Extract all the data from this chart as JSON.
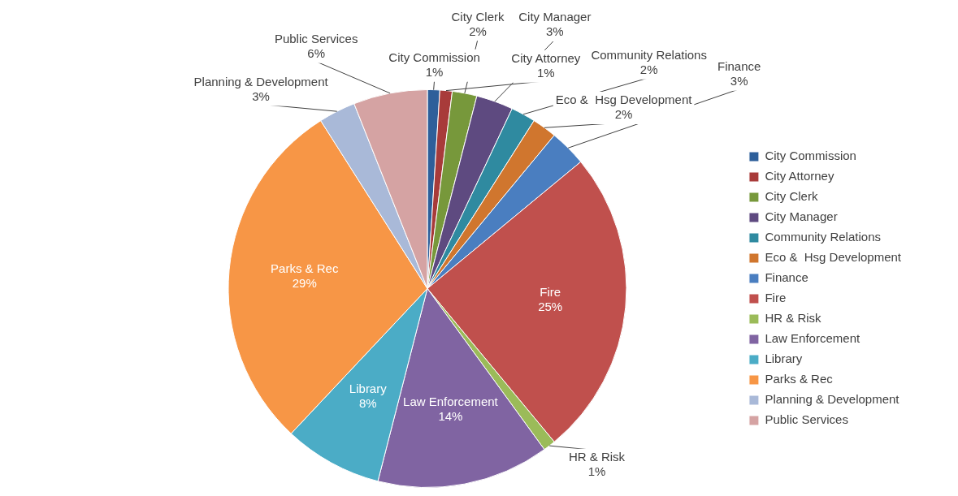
{
  "chart_data": {
    "type": "pie",
    "categories": [
      "City Commission",
      "City Attorney",
      "City Clerk",
      "City Manager",
      "Community Relations",
      "Eco &  Hsg Development",
      "Finance",
      "Fire",
      "HR & Risk",
      "Law Enforcement",
      "Library",
      "Parks & Rec",
      "Planning & Development",
      "Public Services"
    ],
    "values": [
      1,
      1,
      2,
      3,
      2,
      2,
      3,
      25,
      1,
      14,
      8,
      29,
      3,
      6
    ],
    "value_labels": [
      "1%",
      "1%",
      "2%",
      "3%",
      "2%",
      "2%",
      "3%",
      "25%",
      "1%",
      "14%",
      "8%",
      "29%",
      "3%",
      "6%"
    ],
    "colors": [
      "#2e5f9a",
      "#a83b3a",
      "#77983b",
      "#5e4a80",
      "#2f8aa0",
      "#d0762e",
      "#4a7ec0",
      "#c0504d",
      "#9bbb59",
      "#8064a2",
      "#4bacc6",
      "#f79646",
      "#a9b9d8",
      "#d5a3a3"
    ],
    "legend": "right"
  }
}
